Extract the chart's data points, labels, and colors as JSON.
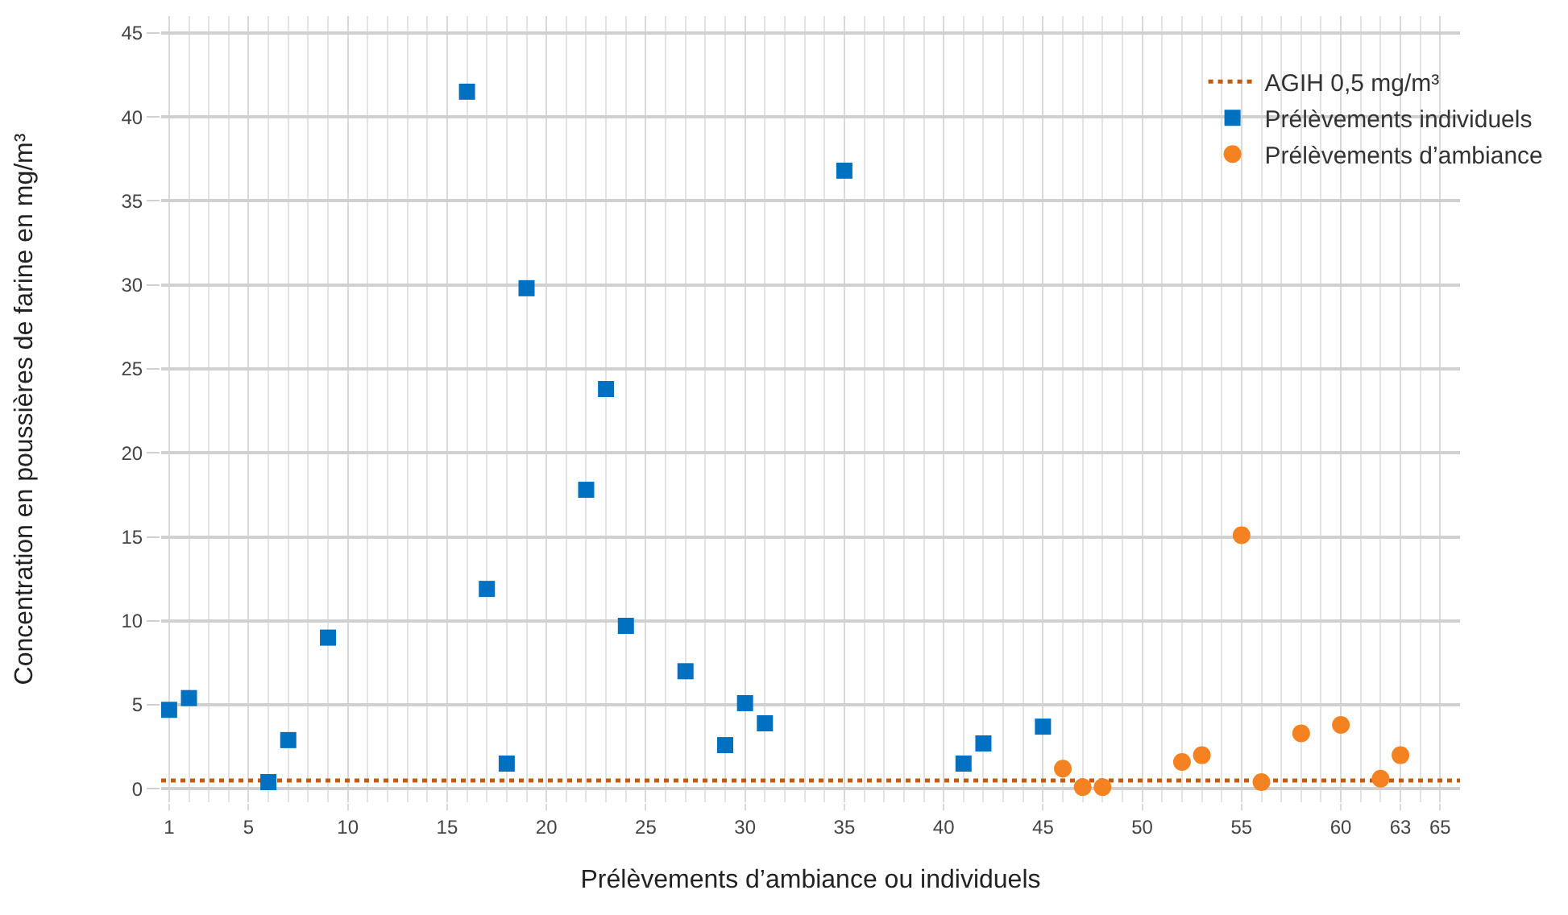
{
  "chart_data": {
    "type": "scatter",
    "xlabel": "Prélèvements d’ambiance ou individuels",
    "ylabel": "Concentration en poussières de farine en mg/m³",
    "series": [
      {
        "name": "Prélèvements individuels",
        "color": "#0070c0",
        "marker": "square",
        "x": [
          1,
          2,
          6,
          7,
          9,
          16,
          17,
          18,
          19,
          22,
          23,
          24,
          27,
          29,
          30,
          31,
          35,
          41,
          42,
          45
        ],
        "values": [
          4.7,
          5.4,
          0.4,
          2.9,
          9.0,
          41.5,
          11.9,
          1.5,
          29.8,
          17.8,
          23.8,
          9.7,
          7.0,
          2.6,
          5.1,
          3.9,
          36.8,
          1.5,
          2.7,
          3.7
        ]
      },
      {
        "name": "Prélèvements d’ambiance",
        "color": "#f58220",
        "marker": "circle",
        "x": [
          46,
          47,
          48,
          52,
          53,
          55,
          56,
          58,
          60,
          62,
          63
        ],
        "values": [
          1.2,
          0.1,
          0.1,
          1.6,
          2.0,
          15.1,
          0.4,
          3.3,
          3.8,
          0.6,
          2.0
        ]
      }
    ],
    "ref_lines": [
      {
        "axis": "y",
        "value": 0.5,
        "label": "AGIH 0,5 mg/m³",
        "color": "#c55a11",
        "line_style": "dotted"
      }
    ],
    "xlim": [
      0.6,
      66
    ],
    "xticks": [
      1,
      5,
      10,
      15,
      20,
      25,
      30,
      35,
      40,
      45,
      50,
      55,
      60,
      63,
      65
    ],
    "ylim": [
      -0.8,
      46
    ],
    "yticks": [
      0,
      5,
      10,
      15,
      20,
      25,
      30,
      35,
      40,
      45
    ],
    "grid": true,
    "legend": "top right"
  }
}
